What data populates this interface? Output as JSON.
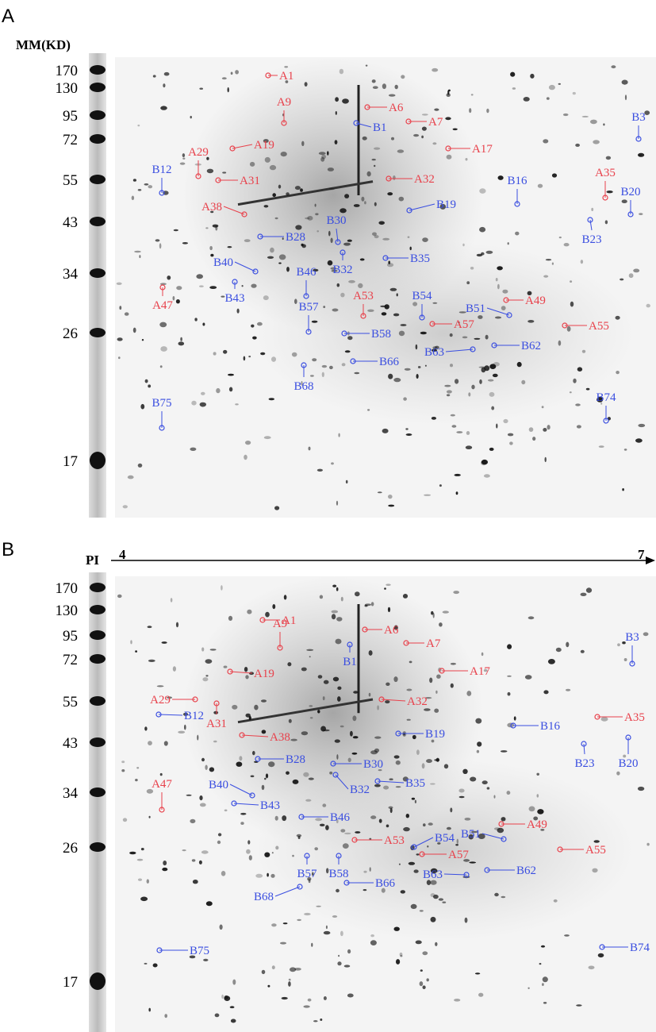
{
  "panels": [
    {
      "label": "A",
      "mm_title": "MM(KD)",
      "markers": [
        170,
        130,
        95,
        72,
        55,
        43,
        34,
        26,
        17
      ],
      "spots": [
        "A1",
        "A9",
        "A6",
        "A7",
        "B1",
        "B3",
        "A17",
        "A19",
        "A29",
        "A31",
        "A32",
        "B12",
        "B16",
        "A35",
        "B20",
        "B19",
        "A38",
        "B23",
        "B30",
        "B28",
        "B32",
        "B35",
        "B40",
        "B46",
        "B43",
        "A47",
        "A53",
        "B54",
        "A49",
        "B51",
        "B57",
        "A57",
        "A55",
        "B58",
        "B62",
        "B63",
        "B66",
        "B68",
        "B74",
        "B75"
      ]
    },
    {
      "label": "B",
      "pi_label": "PI",
      "pi_start": "4",
      "pi_end": "7",
      "markers": [
        170,
        130,
        95,
        72,
        55,
        43,
        34,
        26,
        17
      ],
      "spots": [
        "A1",
        "A9",
        "A6",
        "A7",
        "B1",
        "B3",
        "A17",
        "A19",
        "A29",
        "A31",
        "A32",
        "B12",
        "B16",
        "A35",
        "B19",
        "A38",
        "B23",
        "B20",
        "B28",
        "B30",
        "B32",
        "B35",
        "B40",
        "B43",
        "A47",
        "B46",
        "A49",
        "B51",
        "A53",
        "B54",
        "A57",
        "A55",
        "B57",
        "B58",
        "B62",
        "B63",
        "B66",
        "B68",
        "B74",
        "B75"
      ]
    }
  ]
}
